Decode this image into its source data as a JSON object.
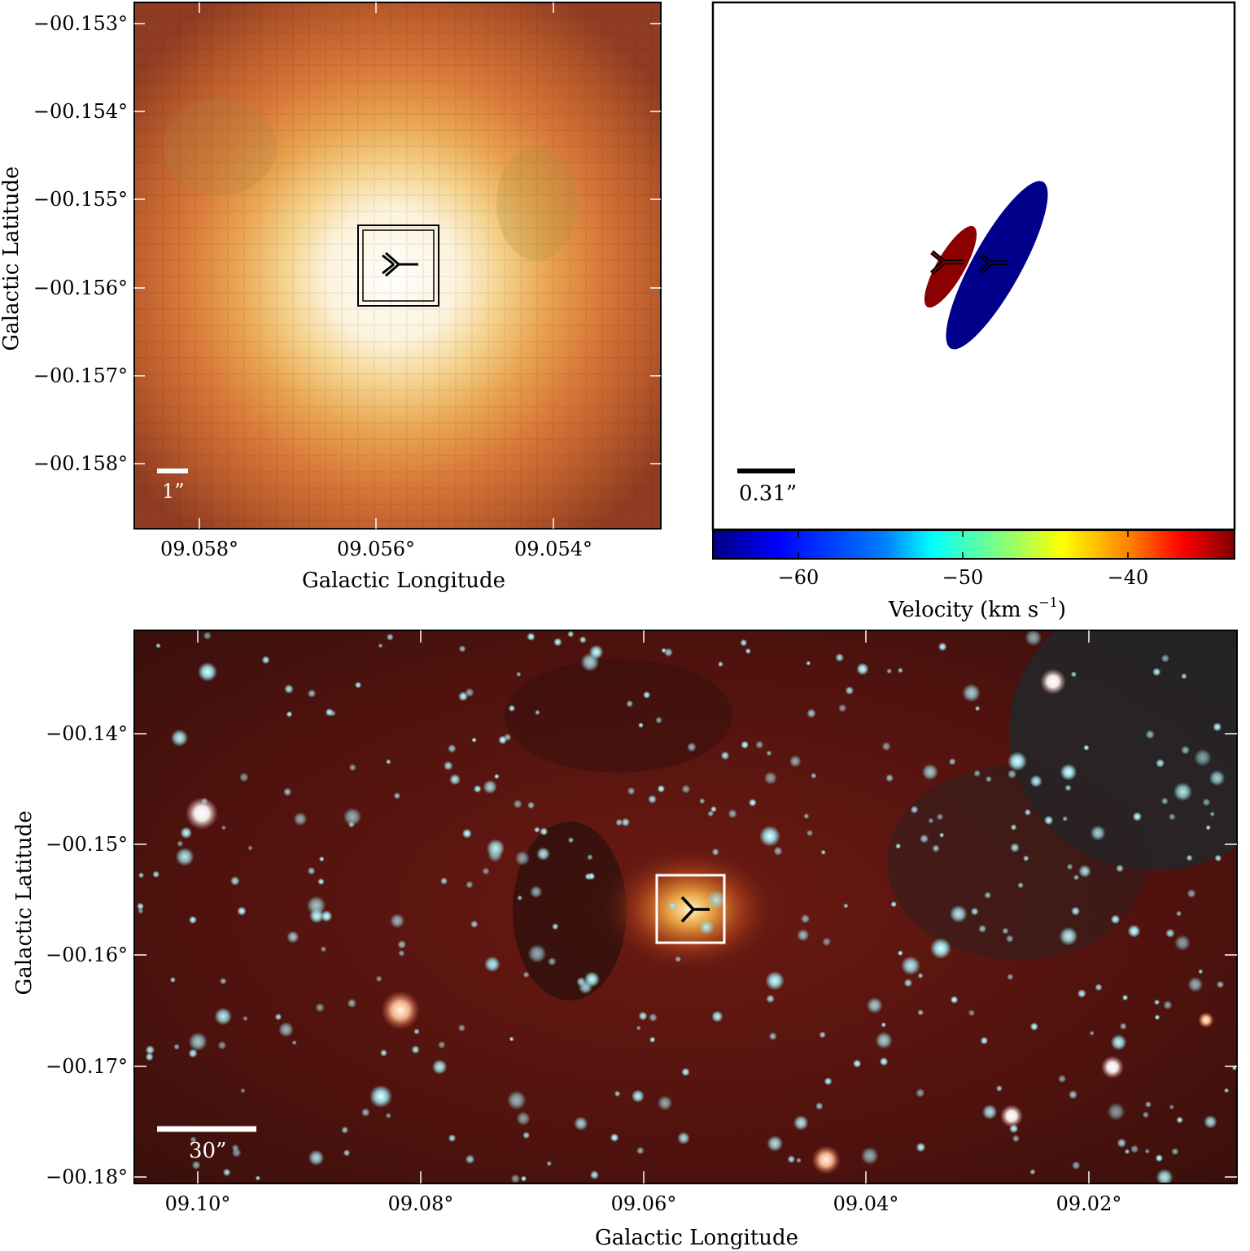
{
  "panel_top_left": {
    "ylabel": "Galactic Latitude",
    "xlabel": "Galactic Longitude",
    "y_ticks": [
      "−00.153°",
      "−00.154°",
      "−00.155°",
      "−00.156°",
      "−00.157°",
      "−00.158°"
    ],
    "x_ticks": [
      "09.058°",
      "09.056°",
      "09.054°"
    ],
    "scale_bar_label": "1”"
  },
  "panel_top_right": {
    "scale_bar_label": "0.31”",
    "ellipse_colors": [
      "#8b0000",
      "#00008b"
    ],
    "colorbar": {
      "label": "Velocity (km s",
      "label_exp": "−1",
      "label_end": ")",
      "ticks": [
        "−60",
        "−50",
        "−40"
      ],
      "colormap": [
        "#00007f",
        "#0000ff",
        "#007fff",
        "#00ffff",
        "#7fff7f",
        "#ffff00",
        "#ff7f00",
        "#ff0000",
        "#7f0000"
      ]
    }
  },
  "panel_bottom": {
    "ylabel": "Galactic Latitude",
    "xlabel": "Galactic Longitude",
    "y_ticks": [
      "−00.14°",
      "−00.15°",
      "−00.16°",
      "−00.17°",
      "−00.18°"
    ],
    "x_ticks": [
      "09.10°",
      "09.08°",
      "09.06°",
      "09.04°",
      "09.02°"
    ],
    "scale_bar_label": "30”"
  }
}
